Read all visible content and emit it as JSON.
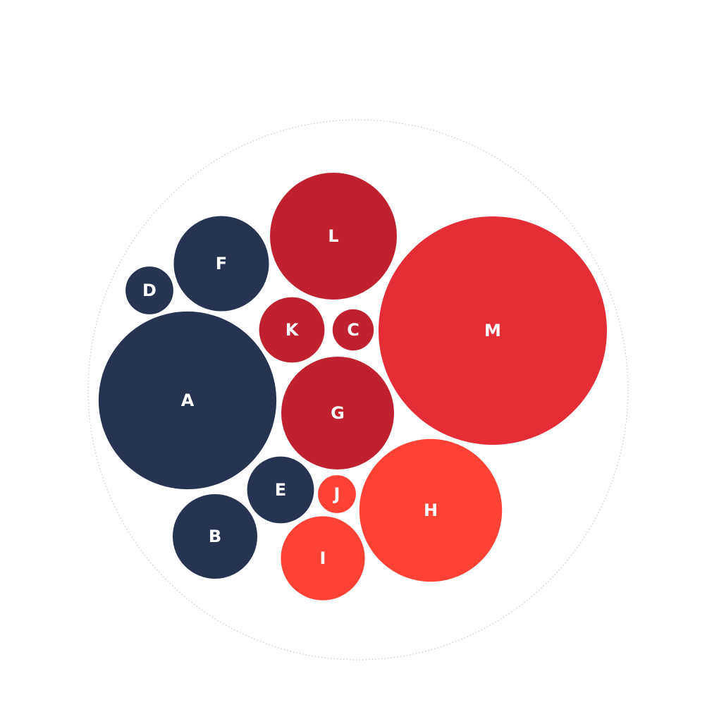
{
  "chart_data": {
    "type": "bubble-pack",
    "title": "",
    "legend": "none",
    "colors": {
      "navy": "#263351",
      "crimson": "#c0212f",
      "red": "#e52d36",
      "coral": "#ff4136",
      "boundary": "#c9c9c9"
    },
    "bubbles": [
      {
        "label": "A",
        "value": 6.36,
        "group": "navy"
      },
      {
        "label": "B",
        "value": 1.44,
        "group": "navy"
      },
      {
        "label": "D",
        "value": 0.46,
        "group": "navy"
      },
      {
        "label": "E",
        "value": 0.9,
        "group": "navy"
      },
      {
        "label": "F",
        "value": 1.82,
        "group": "navy"
      },
      {
        "label": "C",
        "value": 0.34,
        "group": "crimson"
      },
      {
        "label": "G",
        "value": 2.56,
        "group": "crimson"
      },
      {
        "label": "K",
        "value": 0.86,
        "group": "crimson"
      },
      {
        "label": "L",
        "value": 3.24,
        "group": "crimson"
      },
      {
        "label": "M",
        "value": 10.5,
        "group": "red"
      },
      {
        "label": "H",
        "value": 4.1,
        "group": "coral"
      },
      {
        "label": "I",
        "value": 1.42,
        "group": "coral"
      },
      {
        "label": "J",
        "value": 0.29,
        "group": "coral"
      }
    ]
  }
}
